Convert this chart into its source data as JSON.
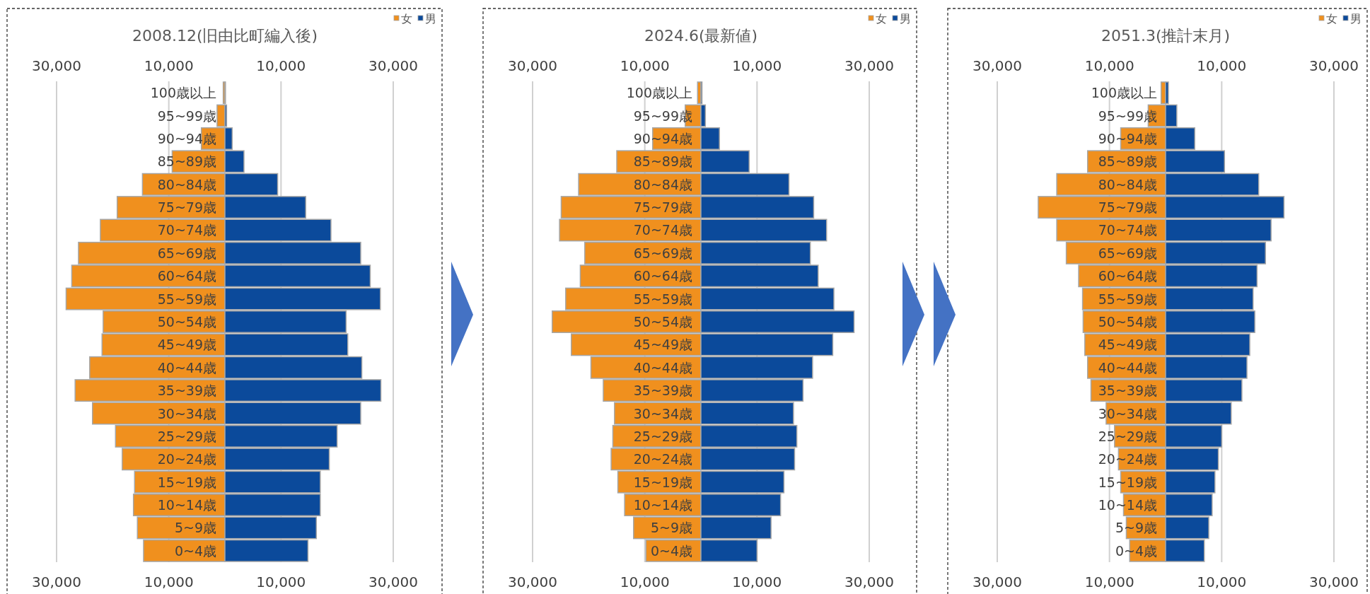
{
  "chart_data": [
    {
      "type": "bar",
      "orientation": "horizontal",
      "stacked": true,
      "title": "2008.12(旧由比町編入後)",
      "legend": "top right",
      "grid": "x",
      "xlim": [
        -30000,
        30000
      ],
      "xticks": [
        {
          "value": -30000,
          "label": "30,000"
        },
        {
          "value": -10000,
          "label": "10,000"
        },
        {
          "value": 10000,
          "label": "10,000"
        },
        {
          "value": 30000,
          "label": "30,000"
        }
      ],
      "x2lim": [
        -30000,
        30000
      ],
      "x2ticks": [
        {
          "value": -30000,
          "label": "30,000"
        },
        {
          "value": -10000,
          "label": "10,000"
        },
        {
          "value": 10000,
          "label": "10,000"
        },
        {
          "value": 30000,
          "label": "30,000"
        }
      ],
      "categories": [
        "100歳以上",
        "95~99歳",
        "90~94歳",
        "85~89歳",
        "80~84歳",
        "75~79歳",
        "70~74歳",
        "65~69歳",
        "60~64歳",
        "55~59歳",
        "50~54歳",
        "45~49歳",
        "40~44歳",
        "35~39歳",
        "30~34歳",
        "25~29歳",
        "20~24歳",
        "15~19歳",
        "10~14歳",
        "5~9歳",
        "0~4歳"
      ],
      "series": [
        {
          "name": "女",
          "color": "#f0901e",
          "values": [
            -300,
            -1400,
            -4200,
            -9400,
            -14700,
            -19200,
            -22200,
            -26100,
            -27300,
            -28300,
            -21700,
            -21900,
            -24100,
            -26700,
            -23600,
            -19500,
            -18300,
            -16100,
            -16300,
            -15600,
            -14500
          ]
        },
        {
          "name": "男",
          "color": "#0b4a9b",
          "values": [
            100,
            300,
            1300,
            3400,
            9400,
            14400,
            18900,
            24200,
            25900,
            27700,
            21600,
            21900,
            24400,
            27800,
            24200,
            20000,
            18600,
            17000,
            17000,
            16300,
            14800
          ]
        }
      ]
    },
    {
      "type": "bar",
      "orientation": "horizontal",
      "stacked": true,
      "title": "2024.6(最新値)",
      "legend": "top right",
      "grid": "x",
      "xlim": [
        -30000,
        30000
      ],
      "xticks": [
        {
          "value": -30000,
          "label": "30,000"
        },
        {
          "value": -10000,
          "label": "10,000"
        },
        {
          "value": 10000,
          "label": "10,000"
        },
        {
          "value": 30000,
          "label": "30,000"
        }
      ],
      "x2lim": [
        -30000,
        30000
      ],
      "x2ticks": [
        {
          "value": -30000,
          "label": "30,000"
        },
        {
          "value": -10000,
          "label": "10,000"
        },
        {
          "value": 10000,
          "label": "10,000"
        },
        {
          "value": 30000,
          "label": "30,000"
        }
      ],
      "categories": [
        "100歳以上",
        "95~99歳",
        "90~94歳",
        "85~89歳",
        "80~84歳",
        "75~79歳",
        "70~74歳",
        "65~69歳",
        "60~64歳",
        "55~59歳",
        "50~54歳",
        "45~49歳",
        "40~44歳",
        "35~39歳",
        "30~34歳",
        "25~29歳",
        "20~24歳",
        "15~19歳",
        "10~14歳",
        "5~9歳",
        "0~4歳"
      ],
      "series": [
        {
          "name": "女",
          "color": "#f0901e",
          "values": [
            -600,
            -2800,
            -8600,
            -15000,
            -21800,
            -24900,
            -25200,
            -20700,
            -21500,
            -24100,
            -26500,
            -23100,
            -19600,
            -17400,
            -15400,
            -15700,
            -16000,
            -14800,
            -13600,
            -12000,
            -9800
          ]
        },
        {
          "name": "男",
          "color": "#0b4a9b",
          "values": [
            200,
            800,
            3300,
            8600,
            15700,
            20100,
            22400,
            19500,
            20900,
            23700,
            27300,
            23500,
            19900,
            18200,
            16500,
            17100,
            16700,
            14800,
            14200,
            12500,
            10000
          ]
        }
      ]
    },
    {
      "type": "bar",
      "orientation": "horizontal",
      "stacked": true,
      "title": "2051.3(推計末月)",
      "legend": "top right",
      "grid": "x",
      "xlim": [
        -30000,
        30000
      ],
      "xticks": [
        {
          "value": -30000,
          "label": "30,000"
        },
        {
          "value": -10000,
          "label": "10,000"
        },
        {
          "value": 10000,
          "label": "10,000"
        },
        {
          "value": 30000,
          "label": "30,000"
        }
      ],
      "x2lim": [
        -30000,
        30000
      ],
      "x2ticks": [
        {
          "value": -30000,
          "label": "30,000"
        },
        {
          "value": -10000,
          "label": "10,000"
        },
        {
          "value": 10000,
          "label": "10,000"
        },
        {
          "value": 30000,
          "label": "30,000"
        }
      ],
      "categories": [
        "100歳以上",
        "95~99歳",
        "90~94歳",
        "85~89歳",
        "80~84歳",
        "75~79歳",
        "70~74歳",
        "65~69歳",
        "60~64歳",
        "55~59歳",
        "50~54歳",
        "45~49歳",
        "40~44歳",
        "35~39歳",
        "30~34歳",
        "25~29歳",
        "20~24歳",
        "15~19歳",
        "10~14歳",
        "5~9歳",
        "0~4歳"
      ],
      "series": [
        {
          "name": "女",
          "color": "#f0901e",
          "values": [
            -800,
            -3100,
            -8000,
            -13900,
            -19400,
            -22700,
            -19400,
            -17700,
            -15500,
            -14800,
            -14700,
            -14400,
            -13900,
            -13300,
            -10600,
            -9100,
            -8400,
            -8000,
            -7500,
            -7000,
            -6400
          ]
        },
        {
          "name": "男",
          "color": "#0b4a9b",
          "values": [
            500,
            2000,
            5200,
            10500,
            16600,
            21100,
            18800,
            17800,
            16300,
            15600,
            15900,
            15000,
            14500,
            13600,
            11700,
            10000,
            9400,
            8800,
            8300,
            7700,
            6900
          ]
        }
      ]
    }
  ]
}
